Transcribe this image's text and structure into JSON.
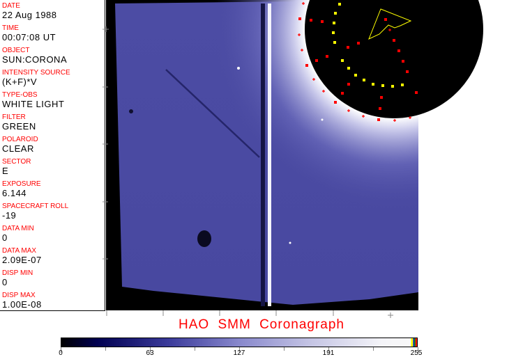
{
  "info_panel": [
    {
      "label": "DATE",
      "value": "22 Aug 1988"
    },
    {
      "label": "TIME",
      "value": "00:07:08 UT"
    },
    {
      "label": "OBJECT",
      "value": "SUN:CORONA"
    },
    {
      "label": "INTENSITY SOURCE",
      "value": "(K+F)*V"
    },
    {
      "label": "TYPE-OBS",
      "value": "WHITE LIGHT"
    },
    {
      "label": "FILTER",
      "value": "GREEN"
    },
    {
      "label": "POLAROID",
      "value": "CLEAR"
    },
    {
      "label": "SECTOR",
      "value": "E"
    },
    {
      "label": "EXPOSURE",
      "value": "6.144"
    },
    {
      "label": "SPACECRAFT ROLL",
      "value": "-19"
    },
    {
      "label": "DATA MIN",
      "value": "0"
    },
    {
      "label": "DATA MAX",
      "value": "2.09E-07"
    },
    {
      "label": "DISP MIN",
      "value": "0"
    },
    {
      "label": "DISP MAX",
      "value": "1.00E-08"
    }
  ],
  "title": "HAO  SMM Coronagraph",
  "colorbar": {
    "ticks": [
      "0",
      "63",
      "127",
      "191",
      "255"
    ],
    "min": 0,
    "max": 255,
    "colors": {
      "low": "#000000",
      "mid": "#8888cc",
      "high": "#f8f8f8"
    }
  },
  "colors": {
    "label": "#ff0000",
    "overlay_yellow": "#ffff00",
    "overlay_red": "#ff0000",
    "image_blue": "#4a4aa0"
  }
}
